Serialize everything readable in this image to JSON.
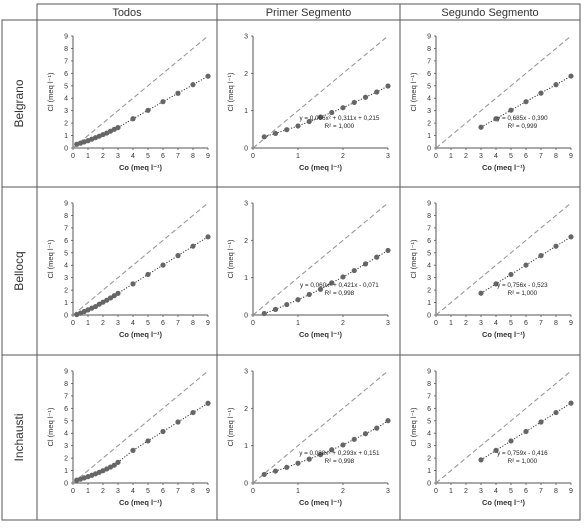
{
  "columns": [
    "Todos",
    "Primer Segmento",
    "Segundo Segmento"
  ],
  "rows": [
    "Belgrano",
    "Bellocq",
    "Inchausti"
  ],
  "colors": {
    "point": "#666666",
    "trend": "#333333",
    "one_to_one": "#999999",
    "border": "#555555"
  },
  "chart_data": [
    {
      "type": "scatter",
      "row": "Belgrano",
      "column": "Todos",
      "xlabel": "Co (meq l⁻¹)",
      "ylabel": "Cl (meq l⁻¹)",
      "xlim": [
        0,
        9
      ],
      "ylim": [
        0,
        9
      ],
      "xticks": [
        "0",
        "1",
        "2",
        "3",
        "4",
        "5",
        "6",
        "7",
        "8",
        "9"
      ],
      "yticks": [
        "0",
        "1",
        "2",
        "3",
        "4",
        "5",
        "6",
        "7",
        "8",
        "9"
      ],
      "one_to_one": true,
      "equation": "",
      "r2": "",
      "x": [
        0.25,
        0.5,
        0.75,
        1.0,
        1.25,
        1.5,
        1.75,
        2.0,
        2.25,
        2.5,
        2.75,
        3.0,
        4.0,
        5.0,
        6.0,
        7.0,
        8.0,
        9.0
      ],
      "y": [
        0.3,
        0.39,
        0.49,
        0.59,
        0.71,
        0.83,
        0.95,
        1.08,
        1.2,
        1.35,
        1.5,
        1.64,
        2.35,
        3.03,
        3.72,
        4.4,
        5.09,
        5.77
      ]
    },
    {
      "type": "scatter",
      "row": "Belgrano",
      "column": "Primer Segmento",
      "xlabel": "Co (meq l⁻¹)",
      "ylabel": "Cl (meq l⁻¹)",
      "xlim": [
        0,
        3
      ],
      "ylim": [
        0,
        3
      ],
      "xticks": [
        "0",
        "1",
        "2",
        "3"
      ],
      "yticks": [
        "0",
        "1",
        "2",
        "3"
      ],
      "one_to_one": true,
      "equation": "y = 0,066x² + 0,311x + 0,215",
      "r2": "R² = 1,000",
      "x": [
        0.25,
        0.5,
        0.75,
        1.0,
        1.25,
        1.5,
        1.75,
        2.0,
        2.25,
        2.5,
        2.75,
        3.0
      ],
      "y": [
        0.3,
        0.39,
        0.49,
        0.59,
        0.71,
        0.83,
        0.95,
        1.08,
        1.22,
        1.36,
        1.5,
        1.66
      ]
    },
    {
      "type": "scatter",
      "row": "Belgrano",
      "column": "Segundo Segmento",
      "xlabel": "Co (meq l⁻¹)",
      "ylabel": "Cl (meq l⁻¹)",
      "xlim": [
        0,
        9
      ],
      "ylim": [
        0,
        9
      ],
      "xticks": [
        "0",
        "1",
        "2",
        "3",
        "4",
        "5",
        "6",
        "7",
        "8",
        "9"
      ],
      "yticks": [
        "0",
        "1",
        "2",
        "3",
        "4",
        "5",
        "6",
        "7",
        "8",
        "9"
      ],
      "one_to_one": true,
      "equation": "y = 0,685x - 0,390",
      "r2": "R² = 0,999",
      "x": [
        3,
        4,
        5,
        6,
        7,
        8,
        9
      ],
      "y": [
        1.67,
        2.35,
        3.04,
        3.72,
        4.41,
        5.09,
        5.78
      ]
    },
    {
      "type": "scatter",
      "row": "Bellocq",
      "column": "Todos",
      "xlabel": "Co (meq l⁻¹)",
      "ylabel": "Cl (meq l⁻¹)",
      "xlim": [
        0,
        9
      ],
      "ylim": [
        0,
        9
      ],
      "xticks": [
        "0",
        "1",
        "2",
        "3",
        "4",
        "5",
        "6",
        "7",
        "8",
        "9"
      ],
      "yticks": [
        "0",
        "1",
        "2",
        "3",
        "4",
        "5",
        "6",
        "7",
        "8",
        "9"
      ],
      "one_to_one": true,
      "equation": "",
      "r2": "",
      "x": [
        0.25,
        0.5,
        0.75,
        1.0,
        1.25,
        1.5,
        1.75,
        2.0,
        2.25,
        2.5,
        2.75,
        3.0,
        4.0,
        5.0,
        6.0,
        7.0,
        8.0,
        9.0
      ],
      "y": [
        0.04,
        0.15,
        0.28,
        0.41,
        0.55,
        0.68,
        0.87,
        1.03,
        1.19,
        1.37,
        1.55,
        1.74,
        2.5,
        3.26,
        4.01,
        4.77,
        5.53,
        6.28
      ]
    },
    {
      "type": "scatter",
      "row": "Bellocq",
      "column": "Primer Segmento",
      "xlabel": "Co (meq l⁻¹)",
      "ylabel": "Cl (meq l⁻¹)",
      "xlim": [
        0,
        3
      ],
      "ylim": [
        0,
        3
      ],
      "xticks": [
        "0",
        "1",
        "2",
        "3"
      ],
      "yticks": [
        "0",
        "1",
        "2",
        "3"
      ],
      "one_to_one": true,
      "equation": "y = 0,060x² + 0,421x - 0,071",
      "r2": "R² = 0,998",
      "x": [
        0.25,
        0.5,
        0.75,
        1.0,
        1.25,
        1.5,
        1.75,
        2.0,
        2.25,
        2.5,
        2.75,
        3.0
      ],
      "y": [
        0.04,
        0.15,
        0.28,
        0.41,
        0.55,
        0.69,
        0.86,
        1.02,
        1.19,
        1.37,
        1.55,
        1.73
      ]
    },
    {
      "type": "scatter",
      "row": "Bellocq",
      "column": "Segundo Segmento",
      "xlabel": "Co (meq l⁻¹)",
      "ylabel": "Cl (meq l⁻¹)",
      "xlim": [
        0,
        9
      ],
      "ylim": [
        0,
        9
      ],
      "xticks": [
        "0",
        "1",
        "2",
        "3",
        "4",
        "5",
        "6",
        "7",
        "8",
        "9"
      ],
      "yticks": [
        "0",
        "1",
        "2",
        "3",
        "4",
        "5",
        "6",
        "7",
        "8",
        "9"
      ],
      "one_to_one": true,
      "equation": "y = 0,756x - 0,523",
      "r2": "R² = 1,000",
      "x": [
        3,
        4,
        5,
        6,
        7,
        8,
        9
      ],
      "y": [
        1.75,
        2.5,
        3.26,
        4.01,
        4.77,
        5.53,
        6.28
      ]
    },
    {
      "type": "scatter",
      "row": "Inchausti",
      "column": "Todos",
      "xlabel": "Co (meq l⁻¹)",
      "ylabel": "Cl (meq l⁻¹)",
      "xlim": [
        0,
        9
      ],
      "ylim": [
        0,
        9
      ],
      "xticks": [
        "0",
        "1",
        "2",
        "3",
        "4",
        "5",
        "6",
        "7",
        "8",
        "9"
      ],
      "yticks": [
        "0",
        "1",
        "2",
        "3",
        "4",
        "5",
        "6",
        "7",
        "8",
        "9"
      ],
      "one_to_one": true,
      "equation": "",
      "r2": "",
      "x": [
        0.25,
        0.5,
        0.75,
        1.0,
        1.25,
        1.5,
        1.75,
        2.0,
        2.25,
        2.5,
        2.75,
        3.0,
        4.0,
        5.0,
        6.0,
        7.0,
        8.0,
        9.0
      ],
      "y": [
        0.23,
        0.31,
        0.41,
        0.51,
        0.62,
        0.74,
        0.86,
        0.99,
        1.13,
        1.28,
        1.43,
        1.66,
        2.62,
        3.38,
        4.14,
        4.9,
        5.66,
        6.41
      ]
    },
    {
      "type": "scatter",
      "row": "Inchausti",
      "column": "Primer Segmento",
      "xlabel": "Co (meq l⁻¹)",
      "ylabel": "Cl (meq l⁻¹)",
      "xlim": [
        0,
        3
      ],
      "ylim": [
        0,
        3
      ],
      "xticks": [
        "0",
        "1",
        "2",
        "3"
      ],
      "yticks": [
        "0",
        "1",
        "2",
        "3"
      ],
      "one_to_one": true,
      "equation": "y = 0,088x² + 0,293x + 0,151",
      "r2": "R² = 0,998",
      "x": [
        0.25,
        0.5,
        0.75,
        1.0,
        1.25,
        1.5,
        1.75,
        2.0,
        2.25,
        2.5,
        2.75,
        3.0
      ],
      "y": [
        0.23,
        0.32,
        0.42,
        0.53,
        0.64,
        0.76,
        0.89,
        1.02,
        1.17,
        1.32,
        1.47,
        1.67
      ]
    },
    {
      "type": "scatter",
      "row": "Inchausti",
      "column": "Segundo Segmento",
      "xlabel": "Co (meq l⁻¹)",
      "ylabel": "Cl (meq l⁻¹)",
      "xlim": [
        0,
        9
      ],
      "ylim": [
        0,
        9
      ],
      "xticks": [
        "0",
        "1",
        "2",
        "3",
        "4",
        "5",
        "6",
        "7",
        "8",
        "9"
      ],
      "yticks": [
        "0",
        "1",
        "2",
        "3",
        "4",
        "5",
        "6",
        "7",
        "8",
        "9"
      ],
      "one_to_one": true,
      "equation": "y = 0,759x - 0,416",
      "r2": "R² = 1,000",
      "x": [
        3,
        4,
        5,
        6,
        7,
        8,
        9
      ],
      "y": [
        1.86,
        2.62,
        3.38,
        4.14,
        4.9,
        5.66,
        6.42
      ]
    }
  ]
}
